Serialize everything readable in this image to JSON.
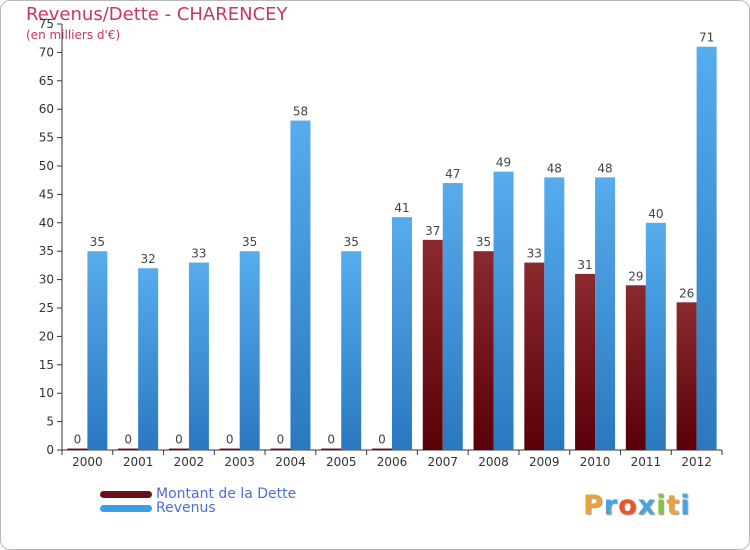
{
  "title": "Revenus/Dette - CHARENCEY",
  "subtitle": "(en milliers d'€)",
  "chart_data": {
    "type": "bar",
    "title": "Revenus/Dette - CHARENCEY",
    "subtitle": "(en milliers d'€)",
    "categories": [
      "2000",
      "2001",
      "2002",
      "2003",
      "2004",
      "2005",
      "2006",
      "2007",
      "2008",
      "2009",
      "2010",
      "2011",
      "2012"
    ],
    "series": [
      {
        "name": "Montant de la Dette",
        "color": "#6b1018",
        "values": [
          0,
          0,
          0,
          0,
          0,
          0,
          0,
          37,
          35,
          33,
          31,
          29,
          26
        ]
      },
      {
        "name": "Revenus",
        "color": "#3a9fe6",
        "values": [
          35,
          32,
          33,
          35,
          58,
          35,
          41,
          47,
          49,
          48,
          48,
          40,
          71
        ]
      }
    ],
    "ylim": [
      0,
      75
    ],
    "yticks": [
      0,
      5,
      10,
      15,
      20,
      25,
      30,
      35,
      40,
      45,
      50,
      55,
      60,
      65,
      70,
      75
    ],
    "grid": false,
    "legend_position": "bottom-left"
  },
  "legend": {
    "debt_label": "Montant de la Dette",
    "revenue_label": "Revenus"
  },
  "logo": {
    "letters": [
      "P",
      "r",
      "o",
      "x",
      "i",
      "t",
      "i"
    ],
    "colors": [
      "#e8a33a",
      "#4aa3df",
      "#e8552f",
      "#4aa3df",
      "#8ac043",
      "#e8a33a",
      "#4aa3df"
    ]
  }
}
